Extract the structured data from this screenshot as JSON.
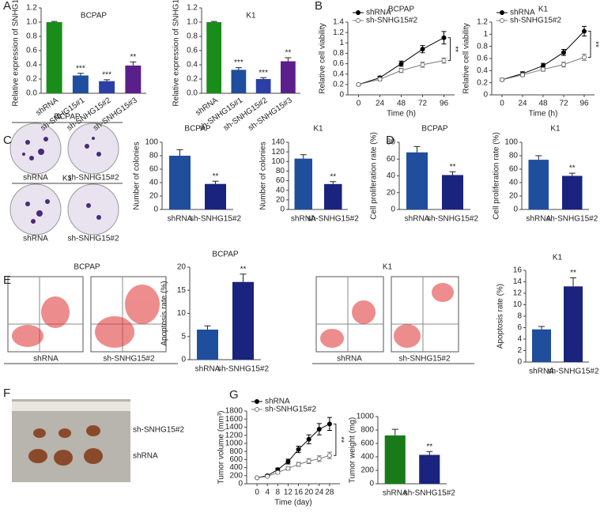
{
  "chart_data": [
    {
      "type": "bar",
      "panel": "A",
      "title": "BCPAP",
      "ylabel": "Relative expression of SNHG15",
      "categories": [
        "shRNA",
        "sh-SNHG15#1",
        "sh-SNHG15#2",
        "sh-SNHG15#3"
      ],
      "values": [
        1.0,
        0.25,
        0.17,
        0.39
      ],
      "errors": [
        0.01,
        0.03,
        0.02,
        0.05
      ],
      "significance": [
        null,
        "***",
        "***",
        "**"
      ],
      "colors": [
        "#1a8c1a",
        "#1f4e9c",
        "#2a3fa8",
        "#5b1f8c"
      ],
      "ylim": [
        0,
        1.2
      ],
      "yticks": [
        {
          "value": 0,
          "label": "0.0"
        },
        0.2,
        0.4,
        0.6,
        0.8,
        {
          "value": 1,
          "label": "1.0"
        },
        1.2
      ]
    },
    {
      "type": "bar",
      "title": "K1",
      "ylabel": "Relative expression of SNHG15",
      "categories": [
        "shRNA",
        "sh-SNHG15#1",
        "sh-SNHG15#2",
        "sh-SNHG15#3"
      ],
      "values": [
        1.0,
        0.33,
        0.2,
        0.45
      ],
      "errors": [
        0.01,
        0.03,
        0.02,
        0.05
      ],
      "significance": [
        null,
        "***",
        "***",
        "**"
      ],
      "colors": [
        "#1a8c1a",
        "#1f4e9c",
        "#2a3fa8",
        "#5b1f8c"
      ],
      "ylim": [
        0,
        1.2
      ],
      "yticks": [
        {
          "value": 0,
          "label": "0.0"
        },
        0.2,
        0.4,
        0.6,
        0.8,
        {
          "value": 1,
          "label": "1.0"
        },
        1.2
      ]
    },
    {
      "type": "line",
      "panel": "B",
      "title": "BCPAP",
      "xlabel": "Time (h)",
      "ylabel": "Relative cell viability",
      "x": [
        0,
        24,
        48,
        72,
        96
      ],
      "xlim": [
        -12,
        108
      ],
      "xticks": [
        0,
        24,
        48,
        72,
        96
      ],
      "ylim": [
        0,
        1.4
      ],
      "yticks": [
        0,
        0.2,
        0.4,
        0.6,
        0.8,
        1,
        1.2,
        1.4
      ],
      "significance": "**",
      "series": [
        {
          "name": "shRNA",
          "color": "#000000",
          "marker": "filled",
          "values": [
            0.2,
            0.33,
            0.6,
            0.88,
            1.1
          ],
          "errors": [
            0.02,
            0.03,
            0.05,
            0.07,
            0.12
          ]
        },
        {
          "name": "sh-SNHG15#2",
          "color": "#777777",
          "marker": "open",
          "values": [
            0.2,
            0.3,
            0.47,
            0.58,
            0.66
          ],
          "errors": [
            0.02,
            0.03,
            0.04,
            0.05,
            0.05
          ]
        }
      ]
    },
    {
      "type": "line",
      "title": "K1",
      "xlabel": "Time (h)",
      "ylabel": "Relative cell viability",
      "x": [
        0,
        24,
        48,
        72,
        96
      ],
      "xlim": [
        -12,
        108
      ],
      "xticks": [
        0,
        24,
        48,
        72,
        96
      ],
      "ylim": [
        0,
        1.2
      ],
      "yticks": [
        0,
        0.2,
        0.4,
        0.6,
        0.8,
        1,
        1.2
      ],
      "significance": "**",
      "series": [
        {
          "name": "shRNA",
          "color": "#000000",
          "marker": "filled",
          "values": [
            0.25,
            0.35,
            0.48,
            0.7,
            1.05
          ],
          "errors": [
            0.02,
            0.03,
            0.04,
            0.05,
            0.08
          ]
        },
        {
          "name": "sh-SNHG15#2",
          "color": "#777777",
          "marker": "open",
          "values": [
            0.25,
            0.33,
            0.42,
            0.5,
            0.62
          ],
          "errors": [
            0.02,
            0.03,
            0.03,
            0.04,
            0.05
          ]
        }
      ]
    },
    {
      "type": "bar",
      "title": "BCPAP",
      "ylabel": "Number of colonies",
      "categories": [
        "shRNA",
        "sh-SNHG15#2"
      ],
      "values": [
        80,
        38
      ],
      "errors": [
        9,
        4
      ],
      "significance": [
        null,
        "**"
      ],
      "colors": [
        "#1f4e9c",
        "#1a237e"
      ],
      "ylim": [
        0,
        100
      ],
      "yticks": [
        0,
        20,
        40,
        60,
        80,
        100
      ]
    },
    {
      "type": "bar",
      "title": "K1",
      "ylabel": "Number of colonies",
      "categories": [
        "shRNA",
        "sh-SNHG15#2"
      ],
      "values": [
        106,
        53
      ],
      "errors": [
        8,
        5
      ],
      "significance": [
        null,
        "**"
      ],
      "colors": [
        "#1f4e9c",
        "#1a237e"
      ],
      "ylim": [
        0,
        140
      ],
      "yticks": [
        0,
        20,
        40,
        60,
        80,
        100,
        120,
        140
      ]
    },
    {
      "type": "bar",
      "panel": "D",
      "title": "BCPAP",
      "ylabel": "Cell proliferation rate (%)",
      "categories": [
        "shRNA",
        "sh-SNHG15#2"
      ],
      "values": [
        68,
        41
      ],
      "errors": [
        7,
        4
      ],
      "significance": [
        null,
        "**"
      ],
      "colors": [
        "#1f4e9c",
        "#1a237e"
      ],
      "ylim": [
        0,
        80
      ],
      "yticks": [
        0,
        20,
        40,
        60,
        80
      ]
    },
    {
      "type": "bar",
      "title": "K1",
      "ylabel": "Cell proliferation rate (%)",
      "categories": [
        "shRNA",
        "sh-SNHG15#2"
      ],
      "values": [
        74,
        50
      ],
      "errors": [
        6,
        4
      ],
      "significance": [
        null,
        "**"
      ],
      "colors": [
        "#1f4e9c",
        "#1a237e"
      ],
      "ylim": [
        0,
        100
      ],
      "yticks": [
        0,
        20,
        40,
        60,
        80,
        100
      ]
    },
    {
      "type": "bar",
      "title": "BCPAP",
      "ylabel": "Apoptosis rate (%)",
      "categories": [
        "shRNA",
        "sh-SNHG15#2"
      ],
      "values": [
        6.5,
        16.8
      ],
      "errors": [
        0.8,
        1.7
      ],
      "significance": [
        null,
        "**"
      ],
      "colors": [
        "#1f4e9c",
        "#1a237e"
      ],
      "ylim": [
        0,
        20
      ],
      "yticks": [
        0,
        5,
        10,
        15,
        20
      ]
    },
    {
      "type": "bar",
      "title": "K1",
      "ylabel": "Apoptosis rate (%)",
      "categories": [
        "shRNA",
        "sh-SNHG15#2"
      ],
      "values": [
        5.7,
        13.2
      ],
      "errors": [
        0.5,
        1.5
      ],
      "significance": [
        null,
        "**"
      ],
      "colors": [
        "#1f4e9c",
        "#1a237e"
      ],
      "ylim": [
        0,
        16
      ],
      "yticks": [
        0,
        2,
        4,
        6,
        8,
        10,
        12,
        14,
        16
      ]
    },
    {
      "type": "line",
      "panel": "G",
      "xlabel": "Time (day)",
      "ylabel": "Tumor volume (mm³)",
      "x": [
        0,
        4,
        8,
        12,
        16,
        20,
        24,
        28
      ],
      "xlim": [
        -4,
        32
      ],
      "xticks": [
        0,
        4,
        8,
        12,
        16,
        20,
        24,
        28
      ],
      "ylim": [
        0,
        1800
      ],
      "yticks": [
        0,
        200,
        400,
        600,
        800,
        1000,
        1200,
        1400,
        1600,
        1800
      ],
      "significance": "**",
      "series": [
        {
          "name": "shRNA",
          "color": "#000000",
          "marker": "filled",
          "values": [
            150,
            200,
            350,
            550,
            850,
            1100,
            1350,
            1480
          ],
          "errors": [
            10,
            20,
            40,
            60,
            80,
            110,
            140,
            160
          ]
        },
        {
          "name": "sh-SNHG15#2",
          "color": "#777777",
          "marker": "open",
          "values": [
            150,
            180,
            280,
            380,
            480,
            560,
            620,
            700
          ],
          "errors": [
            10,
            15,
            30,
            40,
            50,
            60,
            70,
            80
          ]
        }
      ]
    },
    {
      "type": "bar",
      "ylabel": "Tumor weight (mg)",
      "categories": [
        "shRNA",
        "sh-SNHG15#2"
      ],
      "values": [
        720,
        430
      ],
      "errors": [
        90,
        50
      ],
      "significance": [
        null,
        "**"
      ],
      "colors": [
        "#1a7a1a",
        "#1a237e"
      ],
      "ylim": [
        0,
        1000
      ],
      "yticks": [
        0,
        200,
        400,
        600,
        800,
        1000
      ]
    }
  ],
  "images": [
    {
      "panel": "C",
      "titles": [
        "BCPAP",
        "K1"
      ],
      "labels": [
        "shRNA",
        "sh-SNHG15#2",
        "shRNA",
        "sh-SNHG15#2"
      ]
    },
    {
      "panel": "E",
      "titles": [
        "BCPAP"
      ],
      "labels": [
        "shRNA",
        "sh-SNHG15#2"
      ]
    },
    {
      "titles": [
        "K1"
      ],
      "labels": [
        "shRNA",
        "sh-SNHG15#2"
      ]
    },
    {
      "panel": "F",
      "labels": [
        "sh-SNHG15#2",
        "shRNA"
      ]
    }
  ]
}
